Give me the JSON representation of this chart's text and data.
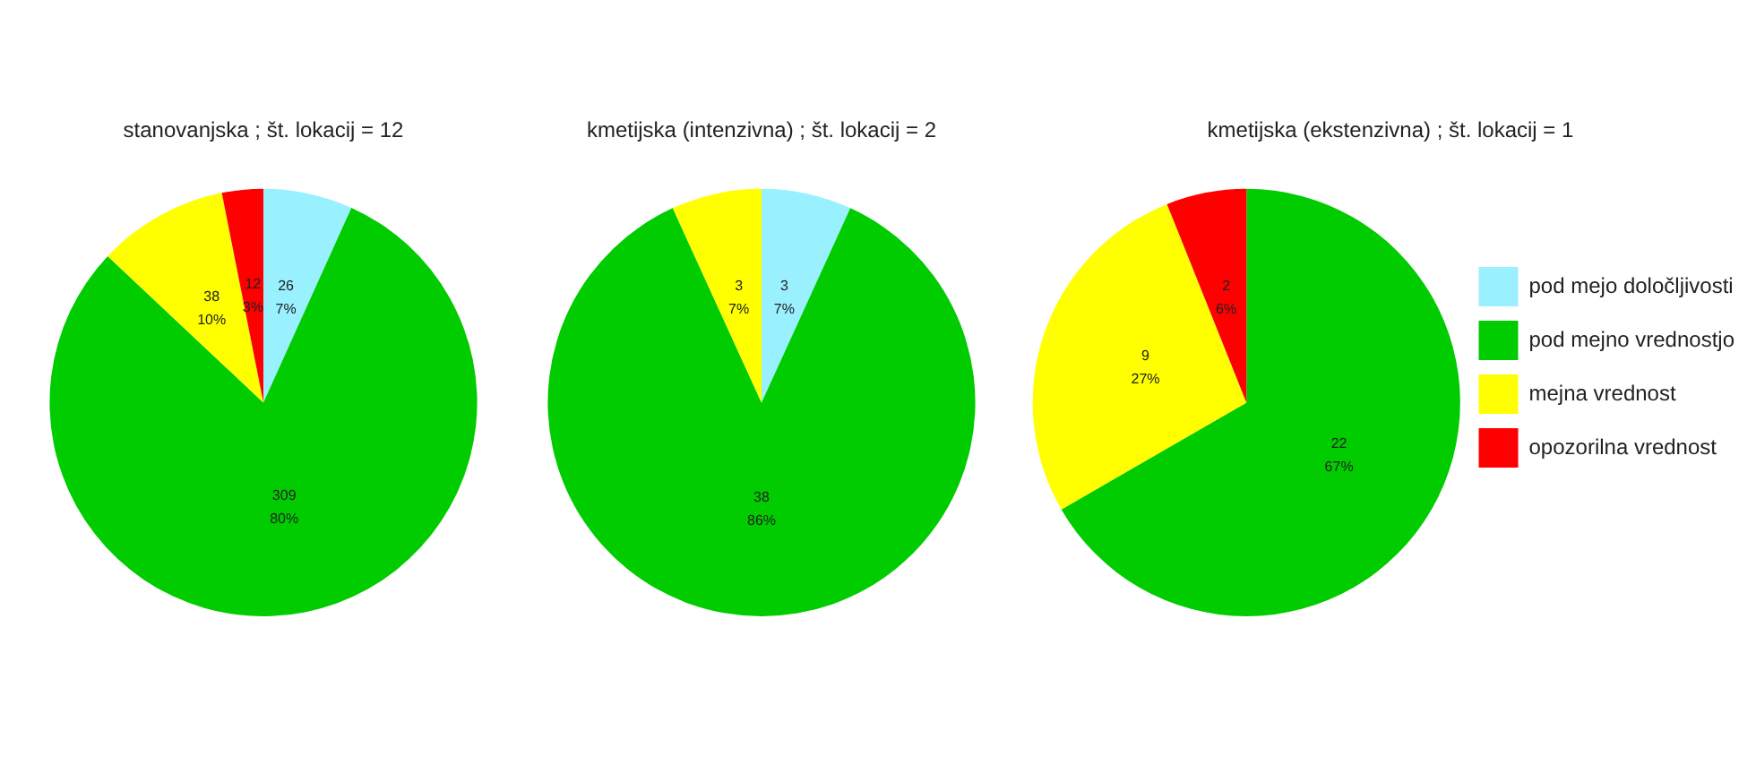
{
  "chart_data": [
    {
      "type": "pie",
      "title": "stanovanjska ; št. lokacij = 12",
      "categories": [
        null,
        null,
        null,
        null
      ],
      "values": [
        26,
        309,
        38,
        12
      ],
      "colors": [
        "#99f0ff",
        "#00cc00",
        "#ffff00",
        "#ff0000"
      ],
      "value_labels": [
        "26\n7%",
        "309\n80%",
        "38\n10%",
        "12\n3%"
      ],
      "legend": false
    },
    {
      "type": "pie",
      "title": "kmetijska (intenzivna) ; št. lokacij = 2",
      "categories": [
        null,
        null,
        null,
        null
      ],
      "values": [
        3,
        38,
        3,
        0
      ],
      "colors": [
        "#99f0ff",
        "#00cc00",
        "#ffff00",
        "#ff0000"
      ],
      "value_labels": [
        "3\n7%",
        "38\n86%",
        "3\n7%",
        null
      ],
      "legend": false
    },
    {
      "type": "pie",
      "title": "kmetijska (ekstenzivna) ; št. lokacij = 1",
      "categories": [
        "pod mejo določljivosti",
        "pod mejno vrednostjo",
        "mejna vrednost",
        "opozorilna vrednost"
      ],
      "values": [
        0,
        22,
        9,
        2
      ],
      "colors": [
        "#99f0ff",
        "#00cc00",
        "#ffff00",
        "#ff0000"
      ],
      "value_labels": [
        null,
        "22\n67%",
        "9\n27%",
        "2\n6%"
      ],
      "legend": "right"
    }
  ]
}
